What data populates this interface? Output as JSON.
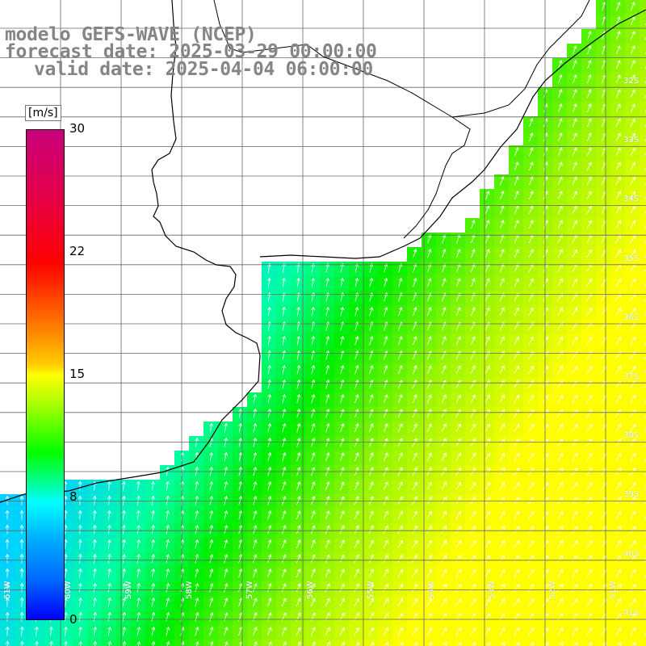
{
  "header": {
    "title": "modelo GEFS-WAVE (NCEP)",
    "forecast_date": "forecast date: 2025-03-29 00:00:00",
    "valid_date": "valid date: 2025-04-04 06:00:00"
  },
  "colorbar": {
    "unit": "[m/s]",
    "ticks": [
      "30",
      "22",
      "15",
      "8",
      "0"
    ],
    "range": [
      0,
      30
    ],
    "colors": [
      "#0000ff",
      "#00aaff",
      "#00ffff",
      "#00ff00",
      "#ffff00",
      "#ff6600",
      "#ff0000",
      "#c8007a"
    ]
  },
  "map": {
    "longitude_labels": [
      "61W",
      "60W",
      "59W",
      "58W",
      "57W",
      "56W",
      "55W",
      "54W",
      "53W",
      "52W",
      "51W"
    ],
    "latitude_labels": [
      "32S",
      "33S",
      "34S",
      "35S",
      "36S",
      "37S",
      "38S",
      "39S",
      "40S",
      "41S"
    ],
    "field_colors": {
      "near_coast": "#00ffff",
      "mid": "#00ff00",
      "offshore": "#ffff00"
    },
    "arrow_color": "#ffffff",
    "coast_color": "#000000",
    "grid_color": "#666666"
  }
}
